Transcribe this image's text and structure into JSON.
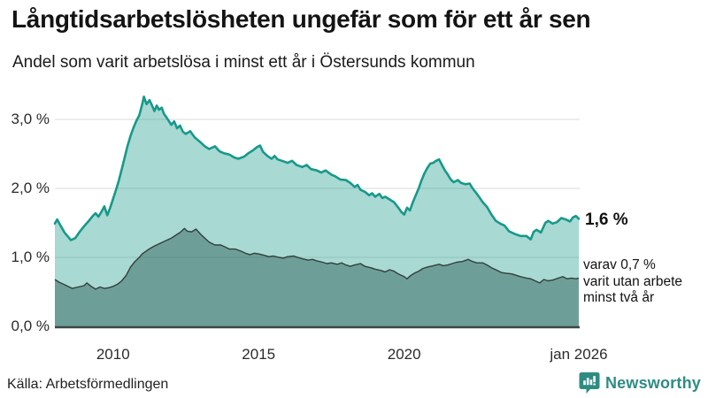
{
  "header": {
    "title": "Långtidsarbetslösheten ungefär som för ett år sen",
    "subtitle": "Andel som varit arbetslösa i minst ett år i Östersunds kommun"
  },
  "chart_data": {
    "type": "area",
    "title": "Långtidsarbetslösheten ungefär som för ett år sen",
    "subtitle": "Andel som varit arbetslösa i minst ett år i Östersunds kommun",
    "x_range": [
      2008,
      2026
    ],
    "y_range": [
      0,
      3.5
    ],
    "grid": "horizontal",
    "y_axis": {
      "ticks": [
        {
          "label": "3,0 %",
          "value": 3
        },
        {
          "label": "2,0 %",
          "value": 2
        },
        {
          "label": "1,0 %",
          "value": 1
        },
        {
          "label": "0,0 %",
          "value": 0
        }
      ]
    },
    "x_axis": {
      "ticks": [
        {
          "label": "2010",
          "value": 2010
        },
        {
          "label": "2015",
          "value": 2015
        },
        {
          "label": "2020",
          "value": 2020
        },
        {
          "label": "jan 2026",
          "value": 2026
        }
      ]
    },
    "colors": {
      "line_total": "#17998a",
      "fill_total": "rgba(26,154,140,0.38)",
      "line_two_years": "#333f3d",
      "fill_two_years": "rgba(52,100,94,0.5)",
      "gridline": "#d8d8d8",
      "axis_line": "#3b4845"
    },
    "series": [
      {
        "name": "Arbetslösa minst ett år",
        "points": [
          [
            2008.0,
            1.49
          ],
          [
            2008.08,
            1.55
          ],
          [
            2008.17,
            1.48
          ],
          [
            2008.25,
            1.42
          ],
          [
            2008.33,
            1.36
          ],
          [
            2008.45,
            1.3
          ],
          [
            2008.55,
            1.25
          ],
          [
            2008.7,
            1.28
          ],
          [
            2008.85,
            1.37
          ],
          [
            2009.0,
            1.45
          ],
          [
            2009.15,
            1.52
          ],
          [
            2009.3,
            1.6
          ],
          [
            2009.4,
            1.64
          ],
          [
            2009.5,
            1.59
          ],
          [
            2009.6,
            1.66
          ],
          [
            2009.7,
            1.74
          ],
          [
            2009.8,
            1.61
          ],
          [
            2009.9,
            1.72
          ],
          [
            2010.0,
            1.85
          ],
          [
            2010.1,
            1.98
          ],
          [
            2010.2,
            2.12
          ],
          [
            2010.3,
            2.28
          ],
          [
            2010.4,
            2.45
          ],
          [
            2010.5,
            2.62
          ],
          [
            2010.6,
            2.76
          ],
          [
            2010.7,
            2.88
          ],
          [
            2010.8,
            2.98
          ],
          [
            2010.9,
            3.06
          ],
          [
            2011.0,
            3.22
          ],
          [
            2011.06,
            3.33
          ],
          [
            2011.15,
            3.22
          ],
          [
            2011.25,
            3.28
          ],
          [
            2011.33,
            3.21
          ],
          [
            2011.42,
            3.12
          ],
          [
            2011.5,
            3.2
          ],
          [
            2011.58,
            3.14
          ],
          [
            2011.67,
            3.17
          ],
          [
            2011.75,
            3.08
          ],
          [
            2011.85,
            3.02
          ],
          [
            2012.0,
            2.92
          ],
          [
            2012.1,
            2.97
          ],
          [
            2012.2,
            2.87
          ],
          [
            2012.3,
            2.91
          ],
          [
            2012.4,
            2.82
          ],
          [
            2012.5,
            2.79
          ],
          [
            2012.65,
            2.83
          ],
          [
            2012.8,
            2.74
          ],
          [
            2013.0,
            2.67
          ],
          [
            2013.15,
            2.61
          ],
          [
            2013.3,
            2.57
          ],
          [
            2013.5,
            2.61
          ],
          [
            2013.65,
            2.54
          ],
          [
            2013.8,
            2.51
          ],
          [
            2014.0,
            2.49
          ],
          [
            2014.15,
            2.45
          ],
          [
            2014.3,
            2.43
          ],
          [
            2014.5,
            2.46
          ],
          [
            2014.65,
            2.51
          ],
          [
            2014.8,
            2.55
          ],
          [
            2014.95,
            2.6
          ],
          [
            2015.05,
            2.62
          ],
          [
            2015.15,
            2.53
          ],
          [
            2015.3,
            2.47
          ],
          [
            2015.45,
            2.43
          ],
          [
            2015.55,
            2.47
          ],
          [
            2015.65,
            2.42
          ],
          [
            2015.8,
            2.4
          ],
          [
            2016.0,
            2.37
          ],
          [
            2016.15,
            2.4
          ],
          [
            2016.3,
            2.34
          ],
          [
            2016.5,
            2.31
          ],
          [
            2016.65,
            2.34
          ],
          [
            2016.8,
            2.28
          ],
          [
            2017.0,
            2.26
          ],
          [
            2017.15,
            2.23
          ],
          [
            2017.3,
            2.26
          ],
          [
            2017.5,
            2.2
          ],
          [
            2017.65,
            2.17
          ],
          [
            2017.8,
            2.13
          ],
          [
            2018.0,
            2.12
          ],
          [
            2018.15,
            2.08
          ],
          [
            2018.3,
            2.02
          ],
          [
            2018.4,
            2.05
          ],
          [
            2018.5,
            1.98
          ],
          [
            2018.65,
            1.95
          ],
          [
            2018.8,
            1.9
          ],
          [
            2018.9,
            1.93
          ],
          [
            2019.0,
            1.88
          ],
          [
            2019.15,
            1.92
          ],
          [
            2019.25,
            1.86
          ],
          [
            2019.35,
            1.88
          ],
          [
            2019.5,
            1.84
          ],
          [
            2019.65,
            1.8
          ],
          [
            2019.8,
            1.72
          ],
          [
            2019.9,
            1.66
          ],
          [
            2020.0,
            1.62
          ],
          [
            2020.1,
            1.72
          ],
          [
            2020.2,
            1.68
          ],
          [
            2020.3,
            1.8
          ],
          [
            2020.4,
            1.9
          ],
          [
            2020.5,
            2.0
          ],
          [
            2020.6,
            2.12
          ],
          [
            2020.7,
            2.22
          ],
          [
            2020.8,
            2.3
          ],
          [
            2020.9,
            2.36
          ],
          [
            2021.0,
            2.37
          ],
          [
            2021.1,
            2.4
          ],
          [
            2021.2,
            2.42
          ],
          [
            2021.3,
            2.34
          ],
          [
            2021.4,
            2.26
          ],
          [
            2021.5,
            2.2
          ],
          [
            2021.6,
            2.13
          ],
          [
            2021.7,
            2.09
          ],
          [
            2021.85,
            2.12
          ],
          [
            2021.95,
            2.08
          ],
          [
            2022.1,
            2.06
          ],
          [
            2022.25,
            2.07
          ],
          [
            2022.35,
            2.0
          ],
          [
            2022.5,
            1.92
          ],
          [
            2022.6,
            1.86
          ],
          [
            2022.7,
            1.8
          ],
          [
            2022.85,
            1.73
          ],
          [
            2023.0,
            1.62
          ],
          [
            2023.15,
            1.53
          ],
          [
            2023.3,
            1.49
          ],
          [
            2023.45,
            1.46
          ],
          [
            2023.6,
            1.38
          ],
          [
            2023.8,
            1.34
          ],
          [
            2024.0,
            1.31
          ],
          [
            2024.2,
            1.31
          ],
          [
            2024.35,
            1.26
          ],
          [
            2024.45,
            1.37
          ],
          [
            2024.55,
            1.4
          ],
          [
            2024.7,
            1.36
          ],
          [
            2024.85,
            1.5
          ],
          [
            2024.95,
            1.53
          ],
          [
            2025.1,
            1.49
          ],
          [
            2025.25,
            1.51
          ],
          [
            2025.4,
            1.57
          ],
          [
            2025.55,
            1.55
          ],
          [
            2025.7,
            1.52
          ],
          [
            2025.8,
            1.58
          ],
          [
            2025.9,
            1.6
          ],
          [
            2026.0,
            1.56
          ]
        ]
      },
      {
        "name": "Utan arbete minst två år",
        "points": [
          [
            2008.0,
            0.68
          ],
          [
            2008.15,
            0.64
          ],
          [
            2008.3,
            0.61
          ],
          [
            2008.45,
            0.58
          ],
          [
            2008.6,
            0.55
          ],
          [
            2008.8,
            0.57
          ],
          [
            2009.0,
            0.59
          ],
          [
            2009.1,
            0.63
          ],
          [
            2009.25,
            0.58
          ],
          [
            2009.4,
            0.54
          ],
          [
            2009.55,
            0.57
          ],
          [
            2009.7,
            0.55
          ],
          [
            2009.85,
            0.56
          ],
          [
            2010.0,
            0.58
          ],
          [
            2010.15,
            0.61
          ],
          [
            2010.3,
            0.66
          ],
          [
            2010.45,
            0.74
          ],
          [
            2010.6,
            0.86
          ],
          [
            2010.75,
            0.94
          ],
          [
            2010.9,
            1.0
          ],
          [
            2011.0,
            1.05
          ],
          [
            2011.2,
            1.11
          ],
          [
            2011.4,
            1.16
          ],
          [
            2011.6,
            1.2
          ],
          [
            2011.8,
            1.24
          ],
          [
            2012.0,
            1.28
          ],
          [
            2012.15,
            1.32
          ],
          [
            2012.3,
            1.36
          ],
          [
            2012.45,
            1.42
          ],
          [
            2012.55,
            1.38
          ],
          [
            2012.7,
            1.37
          ],
          [
            2012.85,
            1.41
          ],
          [
            2013.0,
            1.34
          ],
          [
            2013.15,
            1.28
          ],
          [
            2013.3,
            1.22
          ],
          [
            2013.5,
            1.18
          ],
          [
            2013.7,
            1.18
          ],
          [
            2013.85,
            1.15
          ],
          [
            2014.0,
            1.12
          ],
          [
            2014.2,
            1.12
          ],
          [
            2014.4,
            1.09
          ],
          [
            2014.55,
            1.06
          ],
          [
            2014.7,
            1.04
          ],
          [
            2014.85,
            1.06
          ],
          [
            2015.0,
            1.05
          ],
          [
            2015.2,
            1.03
          ],
          [
            2015.35,
            1.01
          ],
          [
            2015.5,
            1.02
          ],
          [
            2015.7,
            1.0
          ],
          [
            2015.85,
            0.99
          ],
          [
            2016.0,
            1.01
          ],
          [
            2016.2,
            1.02
          ],
          [
            2016.35,
            1.0
          ],
          [
            2016.5,
            0.98
          ],
          [
            2016.7,
            0.96
          ],
          [
            2016.85,
            0.97
          ],
          [
            2017.0,
            0.95
          ],
          [
            2017.2,
            0.93
          ],
          [
            2017.35,
            0.91
          ],
          [
            2017.5,
            0.92
          ],
          [
            2017.7,
            0.9
          ],
          [
            2017.85,
            0.92
          ],
          [
            2018.0,
            0.89
          ],
          [
            2018.15,
            0.87
          ],
          [
            2018.3,
            0.89
          ],
          [
            2018.5,
            0.91
          ],
          [
            2018.65,
            0.87
          ],
          [
            2018.85,
            0.85
          ],
          [
            2019.0,
            0.83
          ],
          [
            2019.2,
            0.81
          ],
          [
            2019.35,
            0.79
          ],
          [
            2019.5,
            0.82
          ],
          [
            2019.65,
            0.8
          ],
          [
            2019.8,
            0.76
          ],
          [
            2020.0,
            0.72
          ],
          [
            2020.1,
            0.69
          ],
          [
            2020.2,
            0.73
          ],
          [
            2020.35,
            0.77
          ],
          [
            2020.5,
            0.8
          ],
          [
            2020.65,
            0.84
          ],
          [
            2020.8,
            0.86
          ],
          [
            2021.0,
            0.88
          ],
          [
            2021.2,
            0.9
          ],
          [
            2021.35,
            0.88
          ],
          [
            2021.5,
            0.89
          ],
          [
            2021.65,
            0.91
          ],
          [
            2021.8,
            0.93
          ],
          [
            2022.0,
            0.94
          ],
          [
            2022.2,
            0.97
          ],
          [
            2022.35,
            0.94
          ],
          [
            2022.5,
            0.92
          ],
          [
            2022.7,
            0.92
          ],
          [
            2022.85,
            0.89
          ],
          [
            2023.0,
            0.85
          ],
          [
            2023.2,
            0.81
          ],
          [
            2023.35,
            0.78
          ],
          [
            2023.5,
            0.77
          ],
          [
            2023.7,
            0.76
          ],
          [
            2023.85,
            0.74
          ],
          [
            2024.0,
            0.72
          ],
          [
            2024.2,
            0.7
          ],
          [
            2024.35,
            0.69
          ],
          [
            2024.5,
            0.66
          ],
          [
            2024.65,
            0.63
          ],
          [
            2024.8,
            0.68
          ],
          [
            2024.95,
            0.66
          ],
          [
            2025.1,
            0.67
          ],
          [
            2025.3,
            0.7
          ],
          [
            2025.45,
            0.72
          ],
          [
            2025.6,
            0.69
          ],
          [
            2025.75,
            0.7
          ],
          [
            2025.9,
            0.69
          ],
          [
            2026.0,
            0.7
          ]
        ]
      }
    ],
    "annotations": {
      "latest_value": "1,6 %",
      "inner_note": {
        "lines": [
          "varav 0,7 %",
          "varit utan arbete",
          "minst två år"
        ]
      }
    }
  },
  "footer": {
    "source": "Källa: Arbetsförmedlingen",
    "brand": "Newsworthy",
    "brand_color": "#2e8c82"
  }
}
